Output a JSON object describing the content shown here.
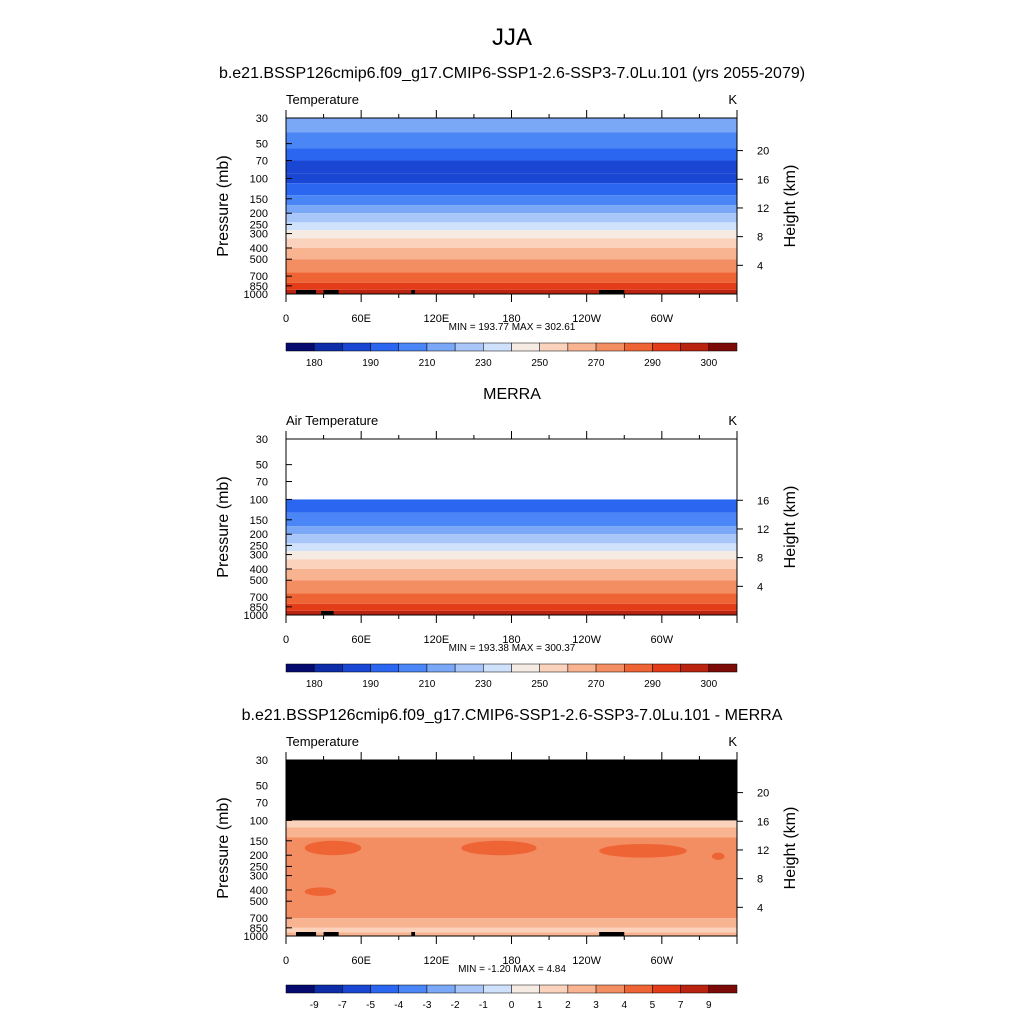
{
  "page": {
    "title": "JJA"
  },
  "colormaps": {
    "abs": [
      "#050a6e",
      "#0c2ca8",
      "#1947d4",
      "#2a66f0",
      "#4a86f6",
      "#7aa8f6",
      "#a9c6f8",
      "#cfe1fb",
      "#f6ebe3",
      "#fbd2bc",
      "#f8b391",
      "#f38d62",
      "#ef6434",
      "#e23c18",
      "#b9230f",
      "#7c0a06"
    ],
    "diff": [
      "#050a6e",
      "#0c2ca8",
      "#1947d4",
      "#2a66f0",
      "#4a86f6",
      "#7aa8f6",
      "#a9c6f8",
      "#cfe1fb",
      "#f6ebe3",
      "#fbd2bc",
      "#f8b391",
      "#f38d62",
      "#ef6434",
      "#e23c18",
      "#b9230f",
      "#7c0a06"
    ]
  },
  "chart_data": [
    {
      "type": "heatmap",
      "title": "b.e21.BSSP126cmip6.f09_g17.CMIP6-SSP1-2.6-SSP3-7.0Lu.101 (yrs 2055-2079)",
      "left_label": "Temperature",
      "right_label": "K",
      "ylabel": "Pressure (mb)",
      "ylabel_right": "Height (km)",
      "x_ticks": [
        "0",
        "60E",
        "120E",
        "180",
        "120W",
        "60W"
      ],
      "x_tick_pos": [
        0,
        60,
        120,
        180,
        240,
        300
      ],
      "xlim": [
        0,
        360
      ],
      "y_ticks": [
        "30",
        "50",
        "70",
        "100",
        "150",
        "200",
        "250",
        "300",
        "400",
        "500",
        "700",
        "850",
        "1000"
      ],
      "y_tick_vals": [
        30,
        50,
        70,
        100,
        150,
        200,
        250,
        300,
        400,
        500,
        700,
        850,
        1000
      ],
      "ylim": [
        30,
        1000
      ],
      "y_scale": "log-pressure",
      "height_ticks": [
        "20",
        "16",
        "12",
        "8",
        "4"
      ],
      "height_vals": [
        20,
        16,
        12,
        8,
        4
      ],
      "stats": "MIN = 193.77  MAX = 302.61",
      "colorbar_labels": [
        "180",
        "190",
        "210",
        "230",
        "250",
        "270",
        "290",
        "300"
      ],
      "colormap": "abs",
      "missing_above_mb": null,
      "layers": [
        {
          "p": 30,
          "c": 5
        },
        {
          "p": 40,
          "c": 4
        },
        {
          "p": 55,
          "c": 3
        },
        {
          "p": 70,
          "c": 2
        },
        {
          "p": 90,
          "c": 2
        },
        {
          "p": 110,
          "c": 3
        },
        {
          "p": 140,
          "c": 4
        },
        {
          "p": 170,
          "c": 5
        },
        {
          "p": 200,
          "c": 6
        },
        {
          "p": 240,
          "c": 7
        },
        {
          "p": 280,
          "c": 8
        },
        {
          "p": 330,
          "c": 9
        },
        {
          "p": 400,
          "c": 10
        },
        {
          "p": 500,
          "c": 11
        },
        {
          "p": 650,
          "c": 12
        },
        {
          "p": 800,
          "c": 13
        },
        {
          "p": 920,
          "c": 14
        }
      ],
      "topography": [
        [
          8,
          24
        ],
        [
          30,
          42
        ],
        [
          100,
          103
        ],
        [
          250,
          270
        ]
      ]
    },
    {
      "type": "heatmap",
      "title": "MERRA",
      "left_label": "Air Temperature",
      "right_label": "K",
      "ylabel": "Pressure (mb)",
      "ylabel_right": "Height (km)",
      "x_ticks": [
        "0",
        "60E",
        "120E",
        "180",
        "120W",
        "60W"
      ],
      "x_tick_pos": [
        0,
        60,
        120,
        180,
        240,
        300
      ],
      "xlim": [
        0,
        360
      ],
      "y_ticks": [
        "30",
        "50",
        "70",
        "100",
        "150",
        "200",
        "250",
        "300",
        "400",
        "500",
        "700",
        "850",
        "1000"
      ],
      "y_tick_vals": [
        30,
        50,
        70,
        100,
        150,
        200,
        250,
        300,
        400,
        500,
        700,
        850,
        1000
      ],
      "ylim": [
        30,
        1000
      ],
      "y_scale": "log-pressure",
      "height_ticks": [
        "16",
        "12",
        "8",
        "4"
      ],
      "height_vals": [
        16,
        12,
        8,
        4
      ],
      "stats": "MIN = 193.38  MAX = 300.37",
      "colorbar_labels": [
        "180",
        "190",
        "210",
        "230",
        "250",
        "270",
        "290",
        "300"
      ],
      "colormap": "abs",
      "missing_above_mb": 100,
      "missing_color": "#ffffff",
      "layers": [
        {
          "p": 100,
          "c": 3
        },
        {
          "p": 130,
          "c": 4
        },
        {
          "p": 170,
          "c": 5
        },
        {
          "p": 200,
          "c": 6
        },
        {
          "p": 240,
          "c": 7
        },
        {
          "p": 280,
          "c": 8
        },
        {
          "p": 330,
          "c": 9
        },
        {
          "p": 400,
          "c": 10
        },
        {
          "p": 500,
          "c": 11
        },
        {
          "p": 650,
          "c": 12
        },
        {
          "p": 800,
          "c": 13
        },
        {
          "p": 920,
          "c": 14
        }
      ],
      "topography": [
        [
          28,
          38
        ]
      ]
    },
    {
      "type": "heatmap",
      "title": "b.e21.BSSP126cmip6.f09_g17.CMIP6-SSP1-2.6-SSP3-7.0Lu.101 - MERRA",
      "left_label": "Temperature",
      "right_label": "K",
      "ylabel": "Pressure (mb)",
      "ylabel_right": "Height (km)",
      "x_ticks": [
        "0",
        "60E",
        "120E",
        "180",
        "120W",
        "60W"
      ],
      "x_tick_pos": [
        0,
        60,
        120,
        180,
        240,
        300
      ],
      "xlim": [
        0,
        360
      ],
      "y_ticks": [
        "30",
        "50",
        "70",
        "100",
        "150",
        "200",
        "250",
        "300",
        "400",
        "500",
        "700",
        "850",
        "1000"
      ],
      "y_tick_vals": [
        30,
        50,
        70,
        100,
        150,
        200,
        250,
        300,
        400,
        500,
        700,
        850,
        1000
      ],
      "ylim": [
        30,
        1000
      ],
      "y_scale": "log-pressure",
      "height_ticks": [
        "20",
        "16",
        "12",
        "8",
        "4"
      ],
      "height_vals": [
        20,
        16,
        12,
        8,
        4
      ],
      "stats": "MIN =  -1.20  MAX =   4.84",
      "colorbar_labels": [
        "-9",
        "-7",
        "-5",
        "-4",
        "-3",
        "-2",
        "-1",
        "0",
        "1",
        "2",
        "3",
        "4",
        "5",
        "7",
        "9"
      ],
      "colormap": "diff",
      "missing_above_mb": 100,
      "missing_color": "#000000",
      "layers": [
        {
          "p": 100,
          "c": 9
        },
        {
          "p": 115,
          "c": 10
        },
        {
          "p": 140,
          "c": 11
        },
        {
          "p": 700,
          "c": 10
        },
        {
          "p": 850,
          "c": 9
        },
        {
          "p": 930,
          "c": 10
        }
      ],
      "blobs": [
        {
          "x0": 15,
          "x1": 60,
          "p0": 150,
          "p1": 200,
          "c": 12
        },
        {
          "x0": 140,
          "x1": 200,
          "p0": 150,
          "p1": 200,
          "c": 12
        },
        {
          "x0": 250,
          "x1": 320,
          "p0": 160,
          "p1": 210,
          "c": 12
        },
        {
          "x0": 15,
          "x1": 40,
          "p0": 380,
          "p1": 450,
          "c": 12
        },
        {
          "x0": 340,
          "x1": 350,
          "p0": 190,
          "p1": 220,
          "c": 12
        }
      ],
      "topography": [
        [
          8,
          24
        ],
        [
          30,
          42
        ],
        [
          100,
          103
        ],
        [
          250,
          270
        ]
      ]
    }
  ]
}
